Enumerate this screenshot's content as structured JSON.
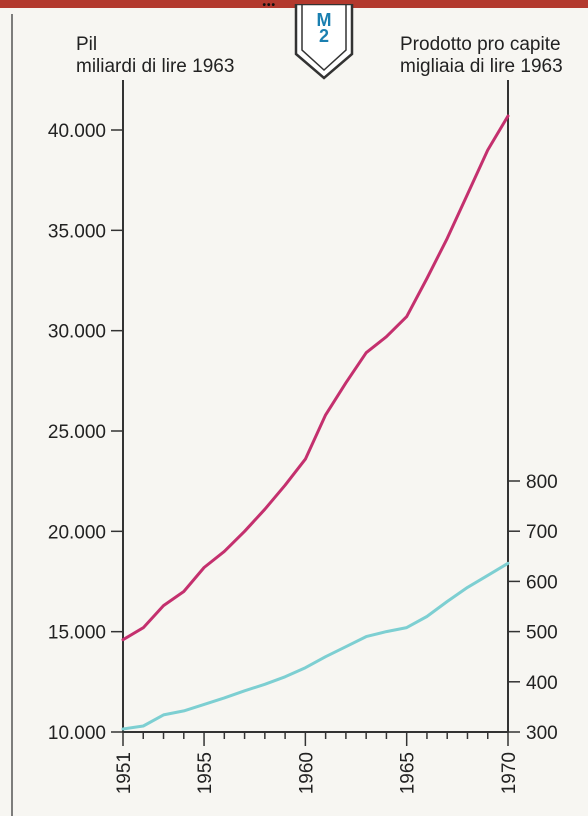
{
  "header": {
    "top_band_text": "...",
    "badge_letter": "M",
    "badge_number": "2"
  },
  "chart_data": {
    "type": "line",
    "title": "",
    "y_left_label": [
      "Pil",
      "miliardi di lire 1963"
    ],
    "y_right_label": [
      "Prodotto pro capite",
      "migliaia di lire 1963"
    ],
    "x": [
      1951,
      1952,
      1953,
      1954,
      1955,
      1956,
      1957,
      1958,
      1959,
      1960,
      1961,
      1962,
      1963,
      1964,
      1965,
      1966,
      1967,
      1968,
      1969,
      1970
    ],
    "x_tick_labels": [
      "1951",
      "1955",
      "1960",
      "1965",
      "1970"
    ],
    "x_range": [
      1951,
      1970
    ],
    "y_left_ticks": [
      "10.000",
      "15.000",
      "20.000",
      "25.000",
      "30.000",
      "35.000",
      "40.000"
    ],
    "y_left_range": [
      10000,
      40000
    ],
    "y_right_ticks": [
      "300",
      "400",
      "500",
      "600",
      "700",
      "800"
    ],
    "y_right_range": [
      300,
      800
    ],
    "series": [
      {
        "axis": "left",
        "color": "#c4306e",
        "values": [
          14600,
          15200,
          16300,
          17000,
          18200,
          19000,
          20000,
          21100,
          22300,
          23600,
          25800,
          27400,
          28900,
          29700,
          30700,
          32600,
          34600,
          36800,
          39000,
          40700
        ]
      },
      {
        "axis": "right",
        "color": "#7dcfd2",
        "values": [
          306,
          312,
          334,
          342,
          355,
          368,
          382,
          395,
          410,
          428,
          450,
          470,
          490,
          500,
          508,
          530,
          560,
          588,
          612,
          636
        ]
      }
    ],
    "grid": false,
    "legend": "none"
  }
}
